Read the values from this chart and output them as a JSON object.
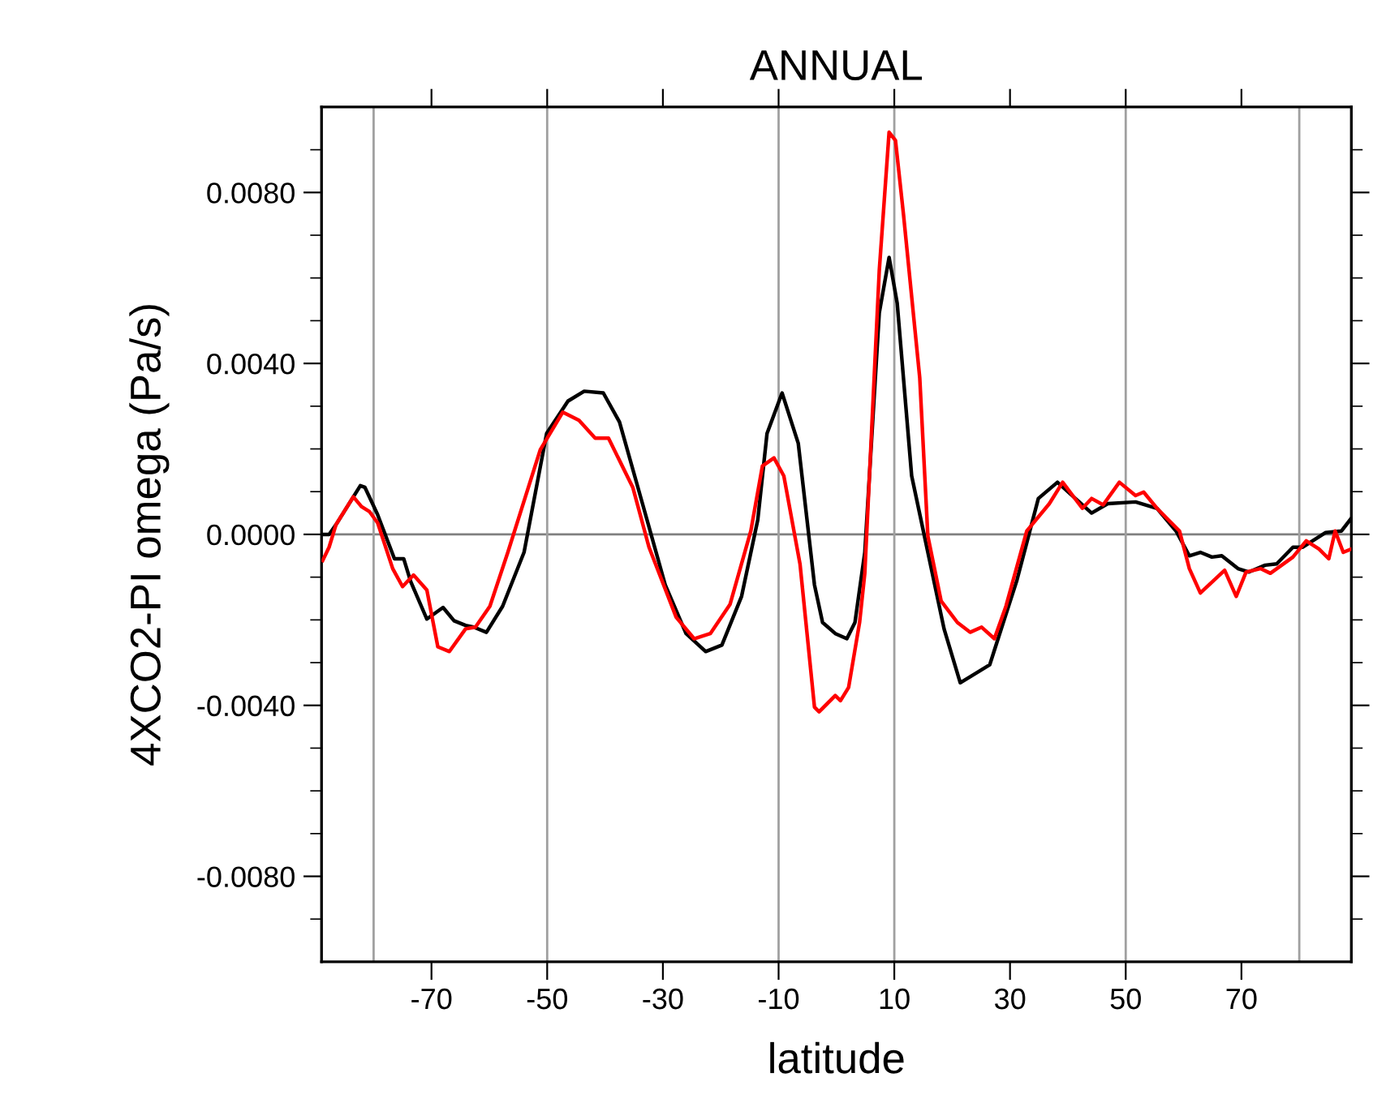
{
  "chart_data": {
    "type": "line",
    "title": "ANNUAL",
    "xlabel": "latitude",
    "ylabel": "4XCO2-PI omega (Pa/s)",
    "xlim": [
      -89,
      89
    ],
    "xticks": [
      -70,
      -50,
      -30,
      -10,
      10,
      30,
      50,
      70
    ],
    "ylim": [
      -0.01,
      0.01
    ],
    "yticks": [
      {
        "value": -0.008,
        "label": "-0.0080"
      },
      {
        "value": -0.004,
        "label": "-0.0040"
      },
      {
        "value": 0,
        "label": "0.0000"
      },
      {
        "value": 0.004,
        "label": "0.0040"
      },
      {
        "value": 0.008,
        "label": "0.0080"
      },
      {
        "value": -0.009,
        "label": null
      },
      {
        "value": -0.007,
        "label": null
      },
      {
        "value": -0.006,
        "label": null
      },
      {
        "value": -0.005,
        "label": null
      },
      {
        "value": -0.003,
        "label": null
      },
      {
        "value": -0.002,
        "label": null
      },
      {
        "value": -0.001,
        "label": null
      },
      {
        "value": 0.001,
        "label": null
      },
      {
        "value": 0.002,
        "label": null
      },
      {
        "value": 0.003,
        "label": null
      },
      {
        "value": 0.005,
        "label": null
      },
      {
        "value": 0.006,
        "label": null
      },
      {
        "value": 0.007,
        "label": null
      },
      {
        "value": 0.009,
        "label": null
      }
    ],
    "grid": false,
    "legend": false,
    "marker": "none",
    "line_style": "solid",
    "ref_lines": [
      {
        "axis": "y",
        "value": 0,
        "color": "#808080"
      },
      {
        "axis": "x",
        "value": -80,
        "color": "#a0a0a0"
      },
      {
        "axis": "x",
        "value": -50,
        "color": "#a0a0a0"
      },
      {
        "axis": "x",
        "value": -10,
        "color": "#a0a0a0"
      },
      {
        "axis": "x",
        "value": 10,
        "color": "#a0a0a0"
      },
      {
        "axis": "x",
        "value": 50,
        "color": "#a0a0a0"
      },
      {
        "axis": "x",
        "value": 80,
        "color": "#a0a0a0"
      }
    ],
    "series": [
      {
        "color": "#000000",
        "x": [
          -88.8,
          -87.7,
          -86.3,
          -82.3,
          -81.5,
          -79.3,
          -76.4,
          -74.8,
          -73.6,
          -70.8,
          -68.0,
          -66.1,
          -64.1,
          -62.7,
          -60.5,
          -57.7,
          -54.0,
          -50.1,
          -46.4,
          -43.6,
          -40.3,
          -37.5,
          -33.3,
          -29.6,
          -26.0,
          -22.6,
          -19.8,
          -16.4,
          -13.6,
          -12.0,
          -9.4,
          -6.6,
          -3.8,
          -2.4,
          -0.2,
          1.8,
          3.2,
          4.9,
          7.4,
          9.1,
          10.5,
          13.0,
          15.8,
          18.6,
          21.4,
          23.7,
          26.5,
          27.3,
          31.2,
          34.9,
          38.2,
          41.3,
          44.1,
          46.9,
          51.7,
          55.4,
          58.7,
          61.0,
          62.9,
          64.9,
          66.6,
          69.4,
          71.3,
          74.1,
          76.1,
          78.9,
          80.6,
          84.5,
          87.3,
          89.0
        ],
        "values": [
          0.0,
          0.0,
          0.00027,
          0.00114,
          0.0011,
          0.00046,
          -0.00057,
          -0.00057,
          -0.0011,
          -0.00198,
          -0.00171,
          -0.00202,
          -0.00213,
          -0.00217,
          -0.00229,
          -0.00168,
          -0.00042,
          0.00236,
          0.00312,
          0.00335,
          0.00331,
          0.00263,
          0.00061,
          -0.00118,
          -0.00232,
          -0.00274,
          -0.00259,
          -0.00145,
          0.00034,
          0.00236,
          0.00331,
          0.00213,
          -0.00118,
          -0.00206,
          -0.00232,
          -0.00244,
          -0.00206,
          -0.00042,
          0.00518,
          0.00648,
          0.00541,
          0.00137,
          -0.00042,
          -0.00221,
          -0.00347,
          -0.00328,
          -0.00305,
          -0.00271,
          -0.00107,
          0.00084,
          0.00122,
          0.00084,
          0.0005,
          0.00072,
          0.00076,
          0.00061,
          8e-05,
          -0.0005,
          -0.00042,
          -0.00053,
          -0.0005,
          -0.0008,
          -0.00088,
          -0.00072,
          -0.00069,
          -0.0003,
          -0.0003,
          4e-05,
          8e-05,
          0.00038
        ]
      },
      {
        "color": "#ff0000",
        "x": [
          -88.8,
          -87.7,
          -86.5,
          -83.5,
          -82.1,
          -80.7,
          -79.3,
          -76.7,
          -75.0,
          -73.1,
          -70.8,
          -68.9,
          -66.9,
          -64.1,
          -62.4,
          -59.9,
          -56.8,
          -51.2,
          -47.3,
          -44.5,
          -41.7,
          -39.4,
          -35.2,
          -32.4,
          -27.7,
          -24.6,
          -21.8,
          -18.4,
          -14.8,
          -12.8,
          -10.8,
          -9.1,
          -6.3,
          -3.8,
          -3.0,
          -0.2,
          0.7,
          2.1,
          4.0,
          4.9,
          7.4,
          9.1,
          10.2,
          11.6,
          14.4,
          15.8,
          18.1,
          20.9,
          23.1,
          25.1,
          27.3,
          29.3,
          32.9,
          36.8,
          39.1,
          42.5,
          44.1,
          46.1,
          48.9,
          51.7,
          53.1,
          55.4,
          59.3,
          61.0,
          62.9,
          67.1,
          69.1,
          70.8,
          73.3,
          75.0,
          78.9,
          81.2,
          83.4,
          85.1,
          86.2,
          87.6,
          89.0
        ],
        "values": [
          -0.00061,
          -0.0003,
          0.00023,
          0.00088,
          0.00065,
          0.00053,
          0.00027,
          -0.0008,
          -0.00122,
          -0.00095,
          -0.0013,
          -0.00263,
          -0.00274,
          -0.00221,
          -0.00217,
          -0.00168,
          -0.00042,
          0.00198,
          0.00286,
          0.00267,
          0.00225,
          0.00225,
          0.0011,
          -0.0003,
          -0.00194,
          -0.00244,
          -0.00232,
          -0.00164,
          8e-05,
          0.0016,
          0.00179,
          0.00137,
          -0.00069,
          -0.00404,
          -0.00415,
          -0.00377,
          -0.00389,
          -0.00358,
          -0.00206,
          -0.00091,
          0.00617,
          0.00941,
          0.00922,
          0.00747,
          0.00366,
          -4e-05,
          -0.00156,
          -0.00206,
          -0.00229,
          -0.00217,
          -0.00244,
          -0.00168,
          8e-05,
          0.00072,
          0.00122,
          0.00061,
          0.00084,
          0.00069,
          0.00122,
          0.00091,
          0.00099,
          0.00061,
          8e-05,
          -0.0008,
          -0.00137,
          -0.00084,
          -0.00145,
          -0.00088,
          -0.0008,
          -0.00091,
          -0.00053,
          -0.00015,
          -0.00034,
          -0.00057,
          8e-05,
          -0.00042,
          -0.00034
        ]
      }
    ]
  }
}
